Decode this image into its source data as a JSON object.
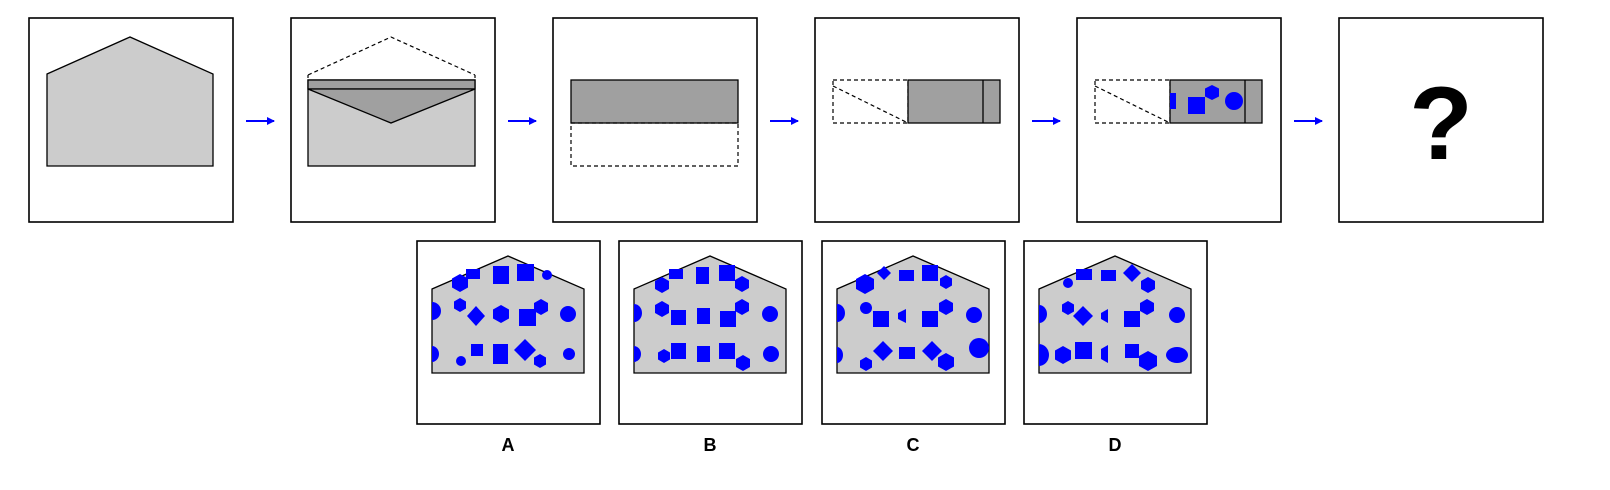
{
  "colors": {
    "light_gray": "#cccccc",
    "dark_gray": "#a0a0a0",
    "blue": "#0000ff",
    "black": "#000000"
  },
  "sequence": {
    "question_mark": "?"
  },
  "options": [
    {
      "label": "A"
    },
    {
      "label": "B"
    },
    {
      "label": "C"
    },
    {
      "label": "D"
    }
  ]
}
